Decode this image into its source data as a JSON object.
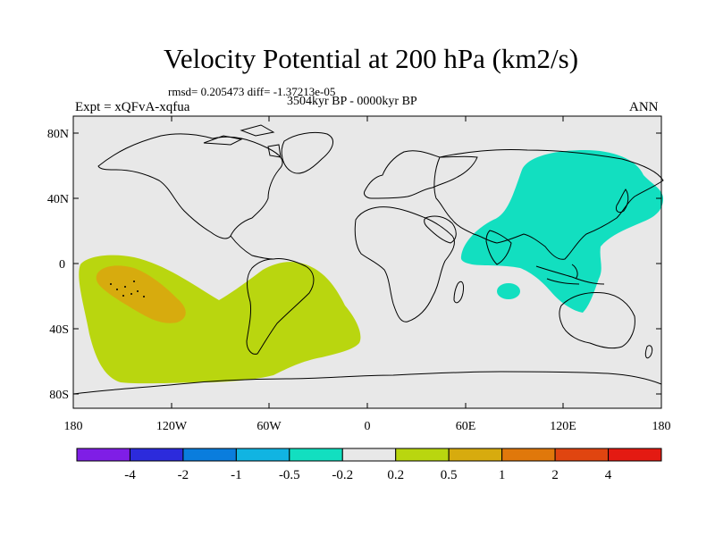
{
  "header": {
    "title": "Velocity Potential at 200 hPa (km2/s)",
    "stats": "rmsd= 0.205473 diff= -1.37213e-05",
    "period": "3504kyr BP - 0000kyr BP",
    "experiment": "Expt = xQFvA-xqfua",
    "season": "ANN"
  },
  "map": {
    "projection": "cylindrical equidistant",
    "lat_labels": [
      "80N",
      "40N",
      "0",
      "40S",
      "80S"
    ],
    "lon_labels": [
      "180",
      "120W",
      "60W",
      "0",
      "60E",
      "120E",
      "180"
    ],
    "land_fill": "#e8e8e8",
    "regions": [
      {
        "name": "pacific-positive-anomaly",
        "level": "0.2 to 0.5",
        "color": "#b9d60f"
      },
      {
        "name": "pacific-core-anomaly",
        "level": "0.5 to 1",
        "color": "#d7ab0e"
      },
      {
        "name": "west-pacific-negative-anomaly",
        "level": "-0.5 to -0.2",
        "color": "#12dfc0"
      }
    ]
  },
  "colorbar": {
    "colors": [
      "#7f1ee6",
      "#2c2bdc",
      "#0a7ddd",
      "#11b4e2",
      "#12dfc0",
      "#e8e8e8",
      "#b9d60f",
      "#d7ab0e",
      "#e0780b",
      "#e04510",
      "#e41a12"
    ],
    "labels": [
      "-4",
      "-2",
      "-1",
      "-0.5",
      "-0.2",
      "0.2",
      "0.5",
      "1",
      "2",
      "4"
    ]
  }
}
